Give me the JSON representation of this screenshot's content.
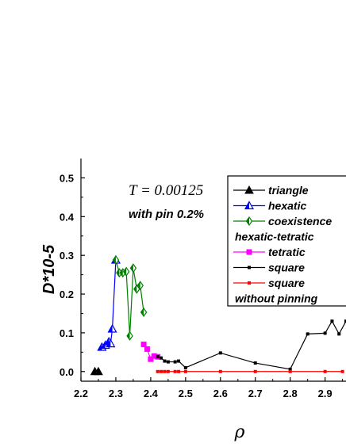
{
  "chart_data": {
    "type": "scatter",
    "xlabel": "ρ",
    "ylabel": "D*10-5",
    "xlim": [
      2.2,
      2.96
    ],
    "ylim": [
      -0.025,
      0.55
    ],
    "x_ticks": [
      2.2,
      2.3,
      2.4,
      2.5,
      2.6,
      2.7,
      2.8,
      2.9
    ],
    "x_tick_labels": [
      "2.2",
      "2.3",
      "2.4",
      "2.5",
      "2.6",
      "2.7",
      "2.8",
      "2.9"
    ],
    "y_ticks": [
      0.0,
      0.1,
      0.2,
      0.3,
      0.4,
      0.5
    ],
    "y_tick_labels": [
      "0.0",
      "0.1",
      "0.2",
      "0.3",
      "0.4",
      "0.5"
    ],
    "annotations": {
      "temperature": "T = 0.00125",
      "pin": "with pin 0.2%"
    },
    "legend_placement": "top-right",
    "legend": [
      {
        "label": "triangle",
        "marker": "triangle-filled",
        "color": "#000000"
      },
      {
        "label": "hexatic",
        "marker": "triangle-half",
        "color": "#0000ff"
      },
      {
        "label": "coexistence",
        "marker": "diamond-half",
        "color": "#008000"
      },
      {
        "label": "hexatic-tetratic",
        "marker": "none",
        "color": "#000000"
      },
      {
        "label": "tetratic",
        "marker": "square",
        "color": "#ff00ff"
      },
      {
        "label": "square",
        "marker": "square-small",
        "color": "#000000"
      },
      {
        "label": "square",
        "marker": "square-small",
        "color": "#ff0000"
      },
      {
        "label": "without pinning",
        "marker": "none",
        "color": "#000000"
      }
    ],
    "series": [
      {
        "name": "triangle",
        "color": "#000000",
        "marker": "triangle-filled",
        "x": [
          2.24,
          2.25
        ],
        "y": [
          0.0,
          0.0
        ]
      },
      {
        "name": "hexatic",
        "color": "#0000ff",
        "marker": "triangle-half",
        "x": [
          2.26,
          2.27,
          2.28,
          2.285,
          2.29,
          2.3
        ],
        "y": [
          0.063,
          0.068,
          0.077,
          0.072,
          0.11,
          0.288
        ]
      },
      {
        "name": "coexistence",
        "color": "#008000",
        "marker": "diamond-half",
        "x": [
          2.3,
          2.31,
          2.32,
          2.33,
          2.34,
          2.35,
          2.36,
          2.37,
          2.38
        ],
        "y": [
          0.288,
          0.255,
          0.255,
          0.258,
          0.092,
          0.267,
          0.213,
          0.222,
          0.153
        ]
      },
      {
        "name": "tetratic",
        "color": "#ff00ff",
        "marker": "square",
        "x": [
          2.38,
          2.39,
          2.4,
          2.41,
          2.42
        ],
        "y": [
          0.07,
          0.058,
          0.032,
          0.04,
          0.038
        ]
      },
      {
        "name": "square",
        "color": "#000000",
        "marker": "square-small",
        "x": [
          2.42,
          2.43,
          2.44,
          2.45,
          2.47,
          2.48,
          2.5,
          2.6,
          2.7,
          2.8,
          2.85,
          2.9,
          2.92,
          2.94,
          2.96
        ],
        "y": [
          0.038,
          0.035,
          0.027,
          0.025,
          0.025,
          0.027,
          0.01,
          0.048,
          0.022,
          0.006,
          0.097,
          0.099,
          0.13,
          0.097,
          0.13
        ]
      },
      {
        "name": "square",
        "color": "#ff0000",
        "marker": "square-small",
        "x": [
          2.42,
          2.43,
          2.44,
          2.45,
          2.47,
          2.48,
          2.5,
          2.6,
          2.7,
          2.8,
          2.9,
          2.95
        ],
        "y": [
          0.0,
          0.0,
          0.0,
          0.0,
          0.0,
          0.0,
          0.0,
          0.0,
          0.0,
          0.0,
          0.0,
          0.0
        ]
      }
    ]
  }
}
